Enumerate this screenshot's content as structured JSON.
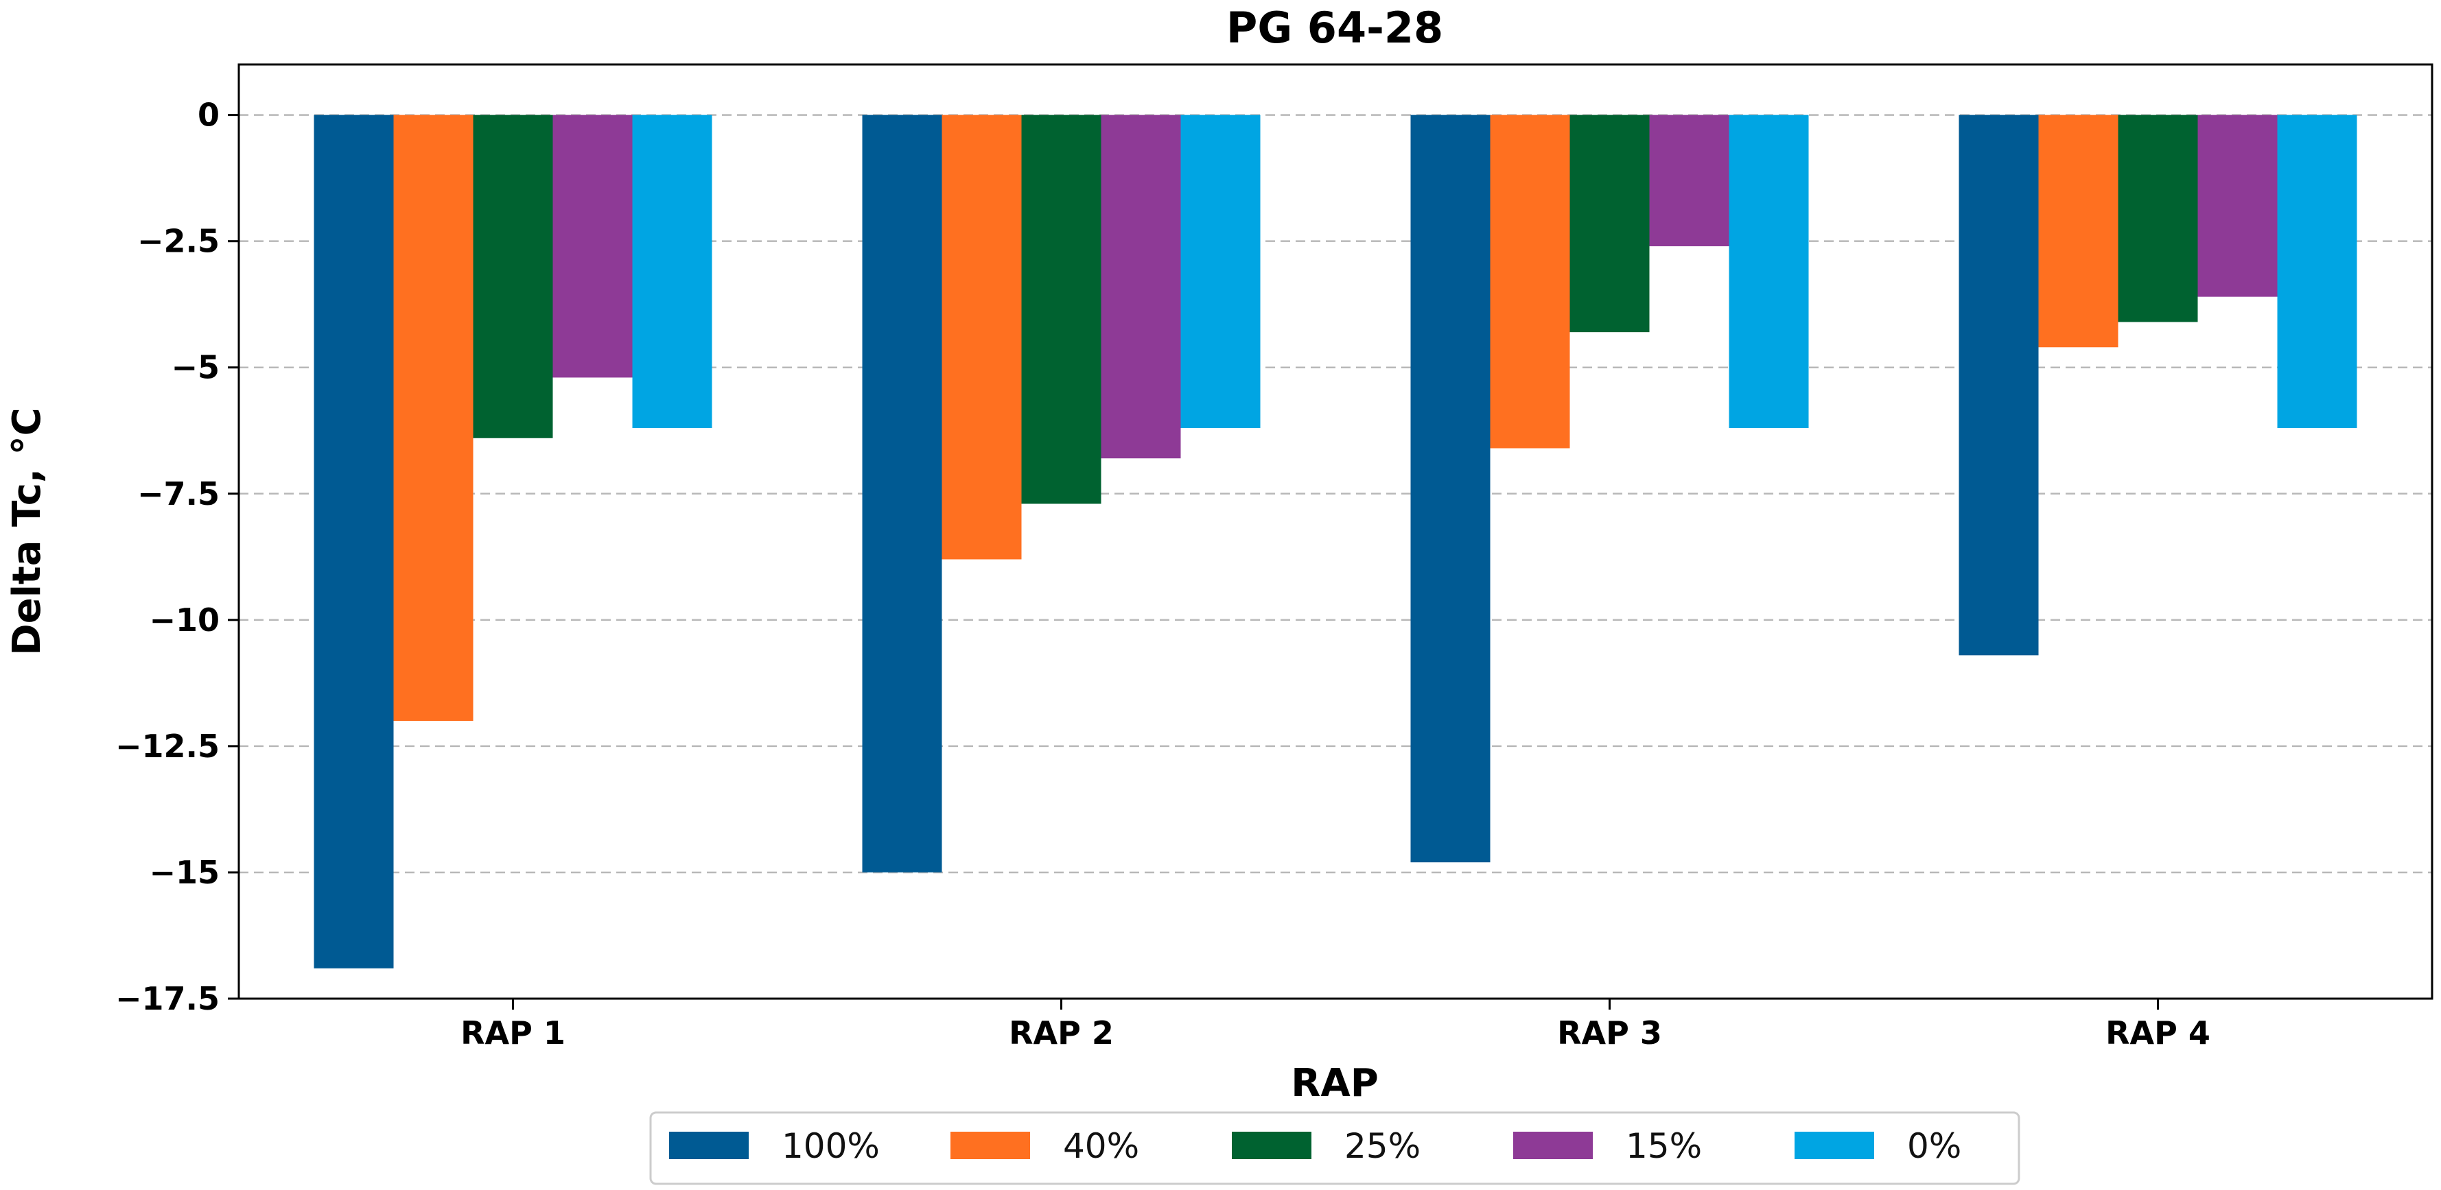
{
  "chart_data": {
    "type": "bar",
    "title": "PG 64-28",
    "xlabel": "RAP",
    "ylabel": "Delta Tc, °C",
    "categories": [
      "RAP 1",
      "RAP 2",
      "RAP 3",
      "RAP 4"
    ],
    "series": [
      {
        "name": "100%",
        "color": "#005A93",
        "values": [
          -16.9,
          -15.0,
          -14.8,
          -10.7
        ]
      },
      {
        "name": "40%",
        "color": "#FF7020",
        "values": [
          -12.0,
          -8.8,
          -6.6,
          -4.6
        ]
      },
      {
        "name": "25%",
        "color": "#006230",
        "values": [
          -6.4,
          -7.7,
          -4.3,
          -4.1
        ]
      },
      {
        "name": "15%",
        "color": "#8E3A96",
        "values": [
          -5.2,
          -6.8,
          -2.6,
          -3.6
        ]
      },
      {
        "name": "0%",
        "color": "#00A5E3",
        "values": [
          -6.2,
          -6.2,
          -6.2,
          -6.2
        ]
      }
    ],
    "ylim": [
      -17.5,
      1.0
    ],
    "yticks": [
      0,
      -2.5,
      -5,
      -7.5,
      -10,
      -12.5,
      -15,
      -17.5
    ],
    "ytick_labels": [
      "0",
      "−2.5",
      "−5",
      "−7.5",
      "−10",
      "−12.5",
      "−15",
      "−17.5"
    ],
    "grid": "horizontal-dashed",
    "legend_position": "bottom-center"
  }
}
